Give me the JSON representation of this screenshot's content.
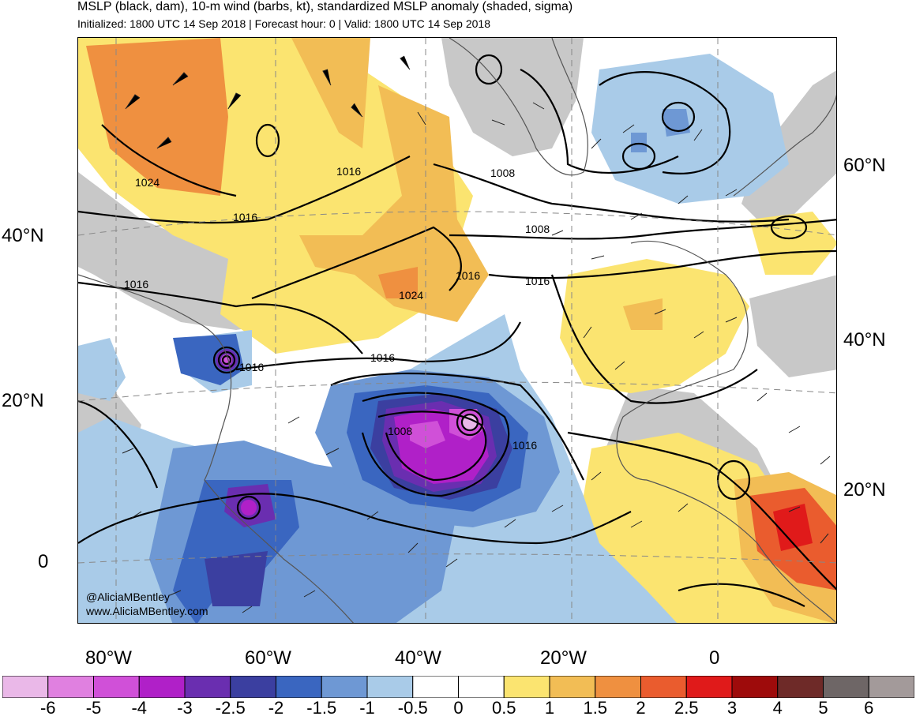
{
  "header": {
    "title": "MSLP (black, dam), 10-m wind (barbs, kt), standardized MSLP anomaly (shaded, sigma)",
    "subtitle": "Initialized: 1800 UTC 14 Sep 2018 | Forecast hour: 0 | Valid: 1800 UTC 14 Sep 2018"
  },
  "map": {
    "region": "North Atlantic",
    "lat_labels_left": [
      "40°N",
      "20°N",
      "0"
    ],
    "lat_labels_right": [
      "60°N",
      "40°N",
      "20°N"
    ],
    "lon_labels": [
      "80°W",
      "60°W",
      "40°W",
      "20°W",
      "0"
    ],
    "isobar_labels": [
      "1024",
      "1016",
      "1016",
      "1016",
      "1016",
      "1016",
      "1024",
      "1016",
      "1008",
      "1008",
      "1016",
      "1008",
      "1016"
    ],
    "watermark_handle": "@AliciaMBentley",
    "watermark_site": "www.AliciaMBentley.com"
  },
  "colorbar": {
    "tick_labels": [
      "-6",
      "-5",
      "-4",
      "-3",
      "-2.5",
      "-2",
      "-1.5",
      "-1",
      "-0.5",
      "0",
      "0.5",
      "1",
      "1.5",
      "2",
      "2.5",
      "3",
      "4",
      "5",
      "6"
    ],
    "colors": [
      "#eab8e8",
      "#e080e0",
      "#d050d8",
      "#b020c8",
      "#6a2eb0",
      "#3b3fa0",
      "#3a66c0",
      "#6e98d4",
      "#a9cbe8",
      "#ffffff",
      "#ffffff",
      "#fbe470",
      "#f2bd55",
      "#ef9040",
      "#ea5c2e",
      "#e01a1a",
      "#9e0b0b",
      "#6e2a28",
      "#6e6666",
      "#a39a9a"
    ]
  },
  "colors": {
    "land_gray": "#c8c8c8",
    "frame": "#000000",
    "isobar": "#000000",
    "coast": "#555555"
  }
}
